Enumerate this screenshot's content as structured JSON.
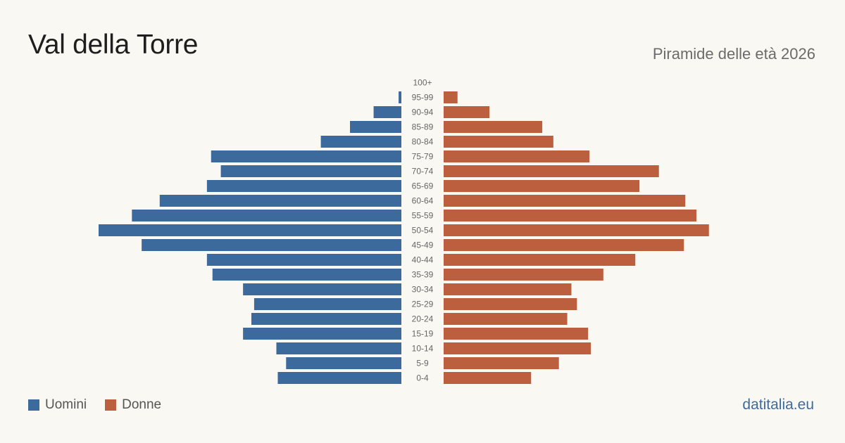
{
  "header": {
    "title": "Val della Torre",
    "subtitle": "Piramide delle età 2026"
  },
  "legend": {
    "men_label": "Uomini",
    "women_label": "Donne"
  },
  "footer": {
    "source": "datitalia.eu"
  },
  "colors": {
    "men": "#3d6a9c",
    "women": "#bb5f3e"
  },
  "chart_data": {
    "type": "bar",
    "orientation": "horizontal-pyramid",
    "categories": [
      "100+",
      "95-99",
      "90-94",
      "85-89",
      "80-84",
      "75-79",
      "70-74",
      "65-69",
      "60-64",
      "55-59",
      "50-54",
      "45-49",
      "40-44",
      "35-39",
      "30-34",
      "25-29",
      "20-24",
      "15-19",
      "10-14",
      "5-9",
      "0-4"
    ],
    "series": [
      {
        "name": "Uomini",
        "values": [
          0,
          2,
          20,
          37,
          58,
          137,
          130,
          140,
          174,
          194,
          218,
          187,
          140,
          136,
          114,
          106,
          108,
          114,
          90,
          83,
          89
        ]
      },
      {
        "name": "Donne",
        "values": [
          0,
          10,
          33,
          71,
          79,
          105,
          155,
          141,
          174,
          182,
          191,
          173,
          138,
          115,
          92,
          96,
          89,
          104,
          106,
          83,
          63
        ]
      }
    ],
    "legend_position": "bottom-left",
    "grid": false
  }
}
